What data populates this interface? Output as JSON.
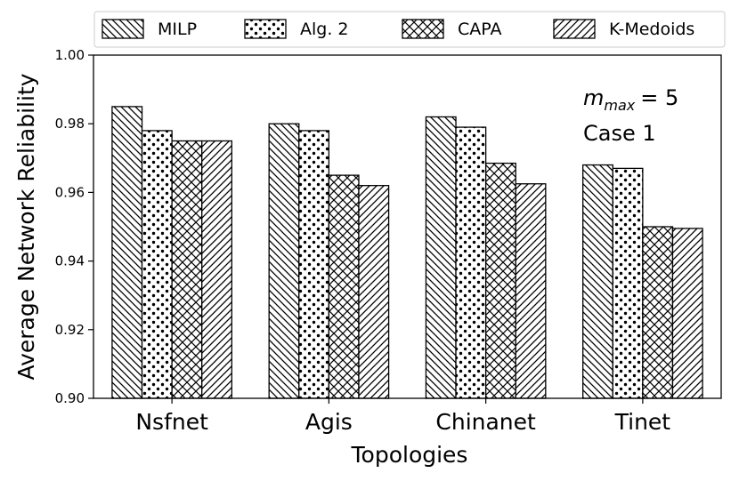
{
  "chart_data": {
    "type": "bar",
    "title": "",
    "xlabel": "Topologies",
    "ylabel": "Average Network Reliability",
    "categories": [
      "Nsfnet",
      "Agis",
      "Chinanet",
      "Tinet"
    ],
    "ylim": [
      0.9,
      1.0
    ],
    "yticks": [
      "0.90",
      "0.92",
      "0.94",
      "0.96",
      "0.98",
      "1.00"
    ],
    "ytick_values": [
      0.9,
      0.92,
      0.94,
      0.96,
      0.98,
      1.0
    ],
    "legend_position": "top",
    "series": [
      {
        "name": "MILP",
        "pattern": "backslash",
        "values": [
          0.985,
          0.98,
          0.982,
          0.968
        ]
      },
      {
        "name": "Alg. 2",
        "pattern": "dots",
        "values": [
          0.978,
          0.978,
          0.979,
          0.967
        ]
      },
      {
        "name": "CAPA",
        "pattern": "crosshatch",
        "values": [
          0.975,
          0.965,
          0.9685,
          0.95
        ]
      },
      {
        "name": "K-Medoids",
        "pattern": "slash",
        "values": [
          0.975,
          0.962,
          0.9625,
          0.9495
        ]
      }
    ],
    "annotation": {
      "m_symbol": "m",
      "m_subscript": "max",
      "m_value": "= 5",
      "case": "Case 1"
    }
  }
}
